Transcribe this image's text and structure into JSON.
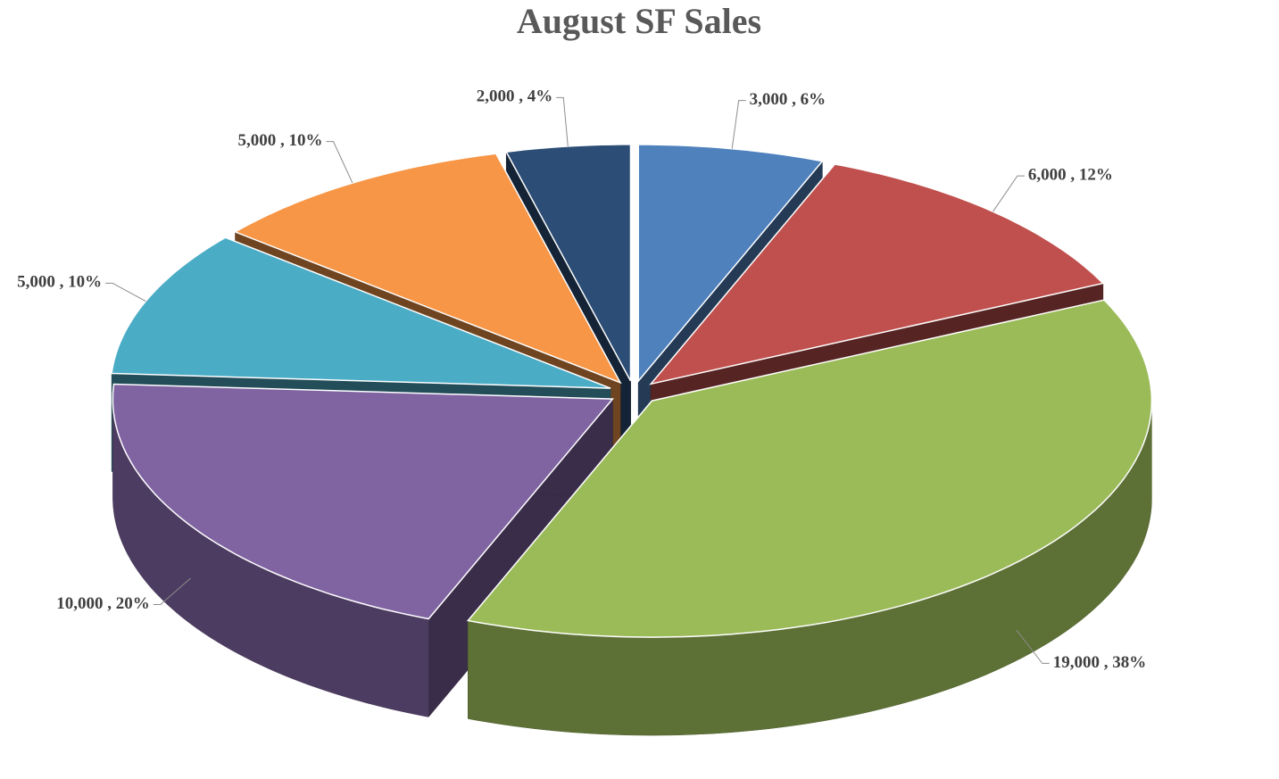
{
  "chart_data": {
    "type": "pie3d",
    "title": "August SF Sales",
    "values": [
      3000,
      6000,
      19000,
      10000,
      5000,
      5000,
      2000
    ],
    "value_labels": [
      "3,000 , 6%",
      "6,000 , 12%",
      "19,000 , 38%",
      "10,000 , 20%",
      "5,000 , 10%",
      "5,000 , 10%",
      "2,000 , 4%"
    ],
    "colors": [
      "#4f81bd",
      "#c0504d",
      "#9bbb59",
      "#8064a2",
      "#4bacc6",
      "#f79646",
      "#2c4d75"
    ]
  }
}
